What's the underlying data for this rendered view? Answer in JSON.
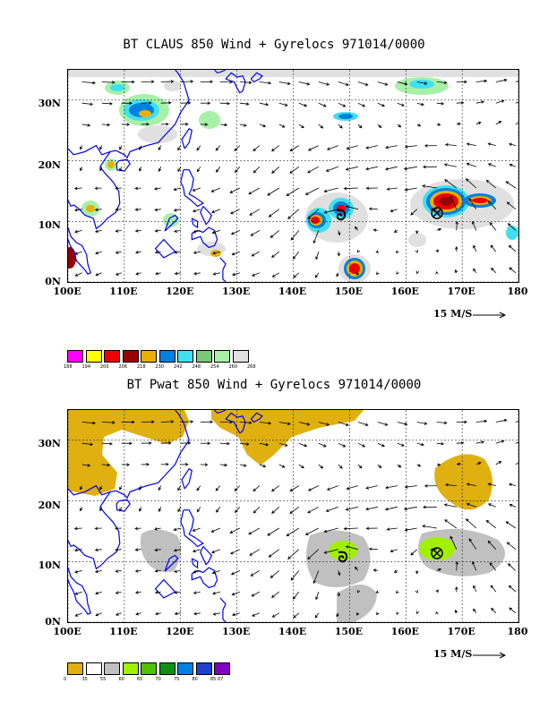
{
  "panel1": {
    "title": "BT CLAUS 850 Wind + Gyrelocs 971014/0000",
    "scale_label": "15 M/S",
    "legend": [
      {
        "label": "188",
        "color": "#ff00ff"
      },
      {
        "label": "194",
        "color": "#ffff00"
      },
      {
        "label": "200",
        "color": "#ee0000"
      },
      {
        "label": "206",
        "color": "#990000"
      },
      {
        "label": "218",
        "color": "#e8b000"
      },
      {
        "label": "230",
        "color": "#0080e0"
      },
      {
        "label": "242",
        "color": "#40e0f0"
      },
      {
        "label": "248",
        "color": "#78c878"
      },
      {
        "label": "254",
        "color": "#a8f0a8"
      },
      {
        "label": "260",
        "color": "#e0e0e0"
      },
      {
        "label": "268",
        "color": ""
      }
    ]
  },
  "panel2": {
    "title": "BT Pwat 850 Wind + Gyrelocs 971014/0000",
    "scale_label": "15 M/S",
    "legend": [
      {
        "label": "0",
        "color": "#e0b010"
      },
      {
        "label": "35",
        "color": "#ffffff"
      },
      {
        "label": "55",
        "color": "#c0c0c0"
      },
      {
        "label": "60",
        "color": "#a0f000"
      },
      {
        "label": "65",
        "color": "#50c000"
      },
      {
        "label": "70",
        "color": "#109010"
      },
      {
        "label": "75",
        "color": "#0080e0"
      },
      {
        "label": "80",
        "color": "#2040d0"
      },
      {
        "label": "85.07",
        "color": "#8000c0"
      }
    ]
  },
  "axes": {
    "lat_labels": [
      "30N",
      "20N",
      "10N",
      "0N"
    ],
    "lon_labels": [
      "100E",
      "110E",
      "120E",
      "130E",
      "140E",
      "150E",
      "160E",
      "170E",
      "180"
    ],
    "lon_range": [
      100,
      180
    ],
    "lat_range": [
      0,
      35
    ]
  },
  "colors": {
    "coast": "#0000ee",
    "grid": "#000000",
    "vector": "#000000"
  }
}
